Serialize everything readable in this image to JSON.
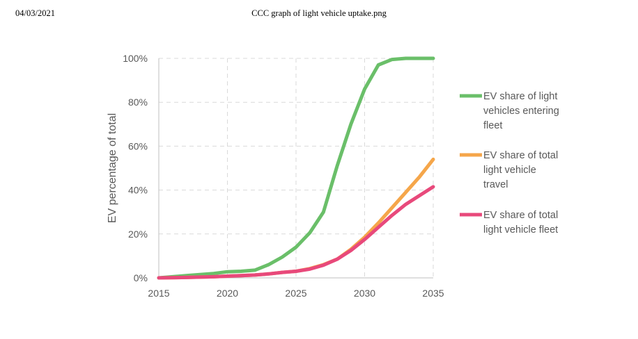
{
  "header": {
    "date": "04/03/2021",
    "title": "CCC graph of light vehicle uptake.png"
  },
  "colors": {
    "green": "#6abf69",
    "orange": "#f5a64a",
    "pink": "#e8497b",
    "grid": "#d9d9d9",
    "text": "#595959"
  },
  "chart_data": {
    "type": "line",
    "title": "",
    "xlabel": "",
    "ylabel": "EV percentage of total",
    "xlim": [
      2015,
      2035
    ],
    "ylim": [
      0,
      100
    ],
    "x_ticks": [
      "2015",
      "2020",
      "2025",
      "2030",
      "2035"
    ],
    "y_ticks": [
      "0%",
      "20%",
      "40%",
      "60%",
      "80%",
      "100%"
    ],
    "grid": true,
    "legend_position": "right",
    "series": [
      {
        "name": "EV share of light vehicles entering fleet",
        "legend_lines": [
          "EV share of light",
          "vehicles entering",
          "fleet"
        ],
        "color": "#6abf69",
        "points": [
          [
            2015,
            0
          ],
          [
            2016,
            0.5
          ],
          [
            2017,
            1
          ],
          [
            2018,
            1.5
          ],
          [
            2019,
            2
          ],
          [
            2020,
            2.8
          ],
          [
            2021,
            3
          ],
          [
            2022,
            3.5
          ],
          [
            2023,
            6
          ],
          [
            2024,
            9.5
          ],
          [
            2025,
            14
          ],
          [
            2026,
            20.5
          ],
          [
            2027,
            30
          ],
          [
            2028,
            51
          ],
          [
            2029,
            70
          ],
          [
            2030,
            86
          ],
          [
            2031,
            97
          ],
          [
            2032,
            99.5
          ],
          [
            2033,
            100
          ],
          [
            2034,
            100
          ],
          [
            2035,
            100
          ]
        ]
      },
      {
        "name": "EV share of total light vehicle travel",
        "legend_lines": [
          "EV share of total",
          "light vehicle",
          "travel"
        ],
        "color": "#f5a64a",
        "points": [
          [
            2015,
            0
          ],
          [
            2017,
            0.2
          ],
          [
            2019,
            0.5
          ],
          [
            2020,
            0.8
          ],
          [
            2021,
            1
          ],
          [
            2022,
            1.3
          ],
          [
            2023,
            1.8
          ],
          [
            2024,
            2.5
          ],
          [
            2025,
            3
          ],
          [
            2026,
            4.2
          ],
          [
            2027,
            6
          ],
          [
            2028,
            8.5
          ],
          [
            2029,
            13
          ],
          [
            2030,
            18.5
          ],
          [
            2031,
            25
          ],
          [
            2032,
            32
          ],
          [
            2033,
            39
          ],
          [
            2034,
            46
          ],
          [
            2035,
            54
          ]
        ]
      },
      {
        "name": "EV share of total light vehicle fleet",
        "legend_lines": [
          "EV share of total",
          "light vehicle fleet"
        ],
        "color": "#e8497b",
        "points": [
          [
            2015,
            0
          ],
          [
            2017,
            0.2
          ],
          [
            2019,
            0.5
          ],
          [
            2020,
            0.8
          ],
          [
            2021,
            1
          ],
          [
            2022,
            1.3
          ],
          [
            2023,
            1.8
          ],
          [
            2024,
            2.5
          ],
          [
            2025,
            3
          ],
          [
            2026,
            4
          ],
          [
            2027,
            5.8
          ],
          [
            2028,
            8.5
          ],
          [
            2029,
            12.5
          ],
          [
            2030,
            17.5
          ],
          [
            2031,
            23
          ],
          [
            2032,
            28.5
          ],
          [
            2033,
            33.5
          ],
          [
            2034,
            37.5
          ],
          [
            2035,
            41.5
          ]
        ]
      }
    ]
  }
}
